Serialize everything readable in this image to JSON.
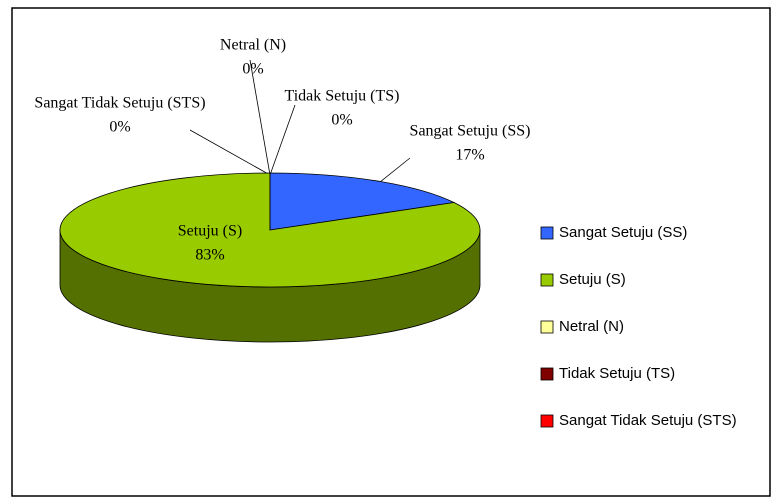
{
  "chart_data": {
    "type": "pie",
    "categories": [
      "Sangat Setuju (SS)",
      "Setuju (S)",
      "Netral (N)",
      "Tidak Setuju (TS)",
      "Sangat Tidak Setuju (STS)"
    ],
    "values": [
      17,
      83,
      0,
      0,
      0
    ],
    "value_labels": [
      "17%",
      "83%",
      "0%",
      "0%",
      "0%"
    ],
    "colors": [
      "#3366ff",
      "#99cc00",
      "#ffff99",
      "#800000",
      "#ff0000"
    ],
    "legend": "right"
  }
}
